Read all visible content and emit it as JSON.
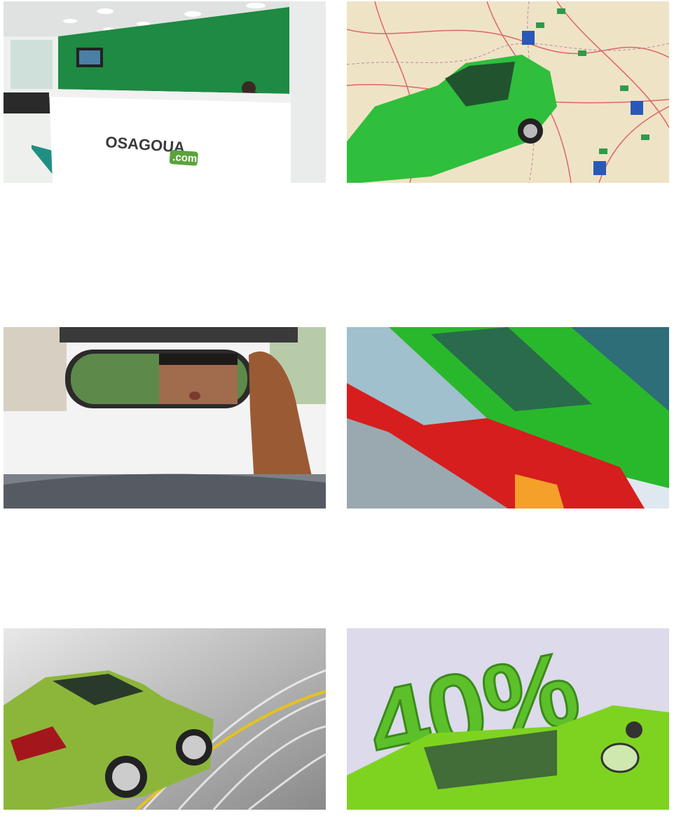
{
  "office_sign": {
    "brand": "OSAGOUA",
    "domain": ".com"
  },
  "discount_sign": "40%"
}
